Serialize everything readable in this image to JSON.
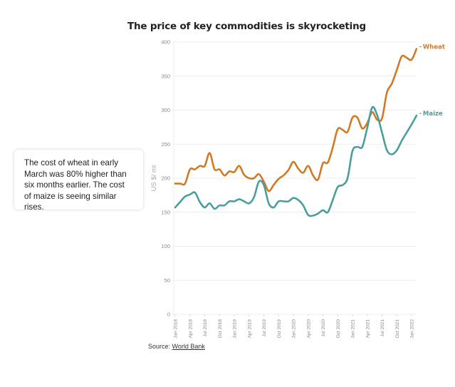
{
  "callout": {
    "text": "The cost of wheat in early March was 80% higher than six months earlier. The cost of maize is seeing similar rises."
  },
  "source": {
    "prefix": "Source: ",
    "link_label": "World Bank"
  },
  "chart_data": {
    "type": "line",
    "title": "The price of key commodities is skyrocketing",
    "xlabel": "",
    "ylabel": "US $/ mt",
    "ylim": [
      0,
      400
    ],
    "yticks": [
      0,
      50,
      100,
      150,
      200,
      250,
      300,
      350,
      400
    ],
    "grid": true,
    "x_start": "2018-01",
    "x_step": "month",
    "xtick_labels": [
      {
        "month_index": 0,
        "label": "Jan 2018"
      },
      {
        "month_index": 3,
        "label": "Apr 2018"
      },
      {
        "month_index": 6,
        "label": "Jul 2018"
      },
      {
        "month_index": 9,
        "label": "Oct 2018"
      },
      {
        "month_index": 12,
        "label": "Jan 2019"
      },
      {
        "month_index": 15,
        "label": "Apr 2019"
      },
      {
        "month_index": 18,
        "label": "Jul 2019"
      },
      {
        "month_index": 21,
        "label": "Oct 2019"
      },
      {
        "month_index": 24,
        "label": "Jan 2020"
      },
      {
        "month_index": 27,
        "label": "Apr 2020"
      },
      {
        "month_index": 30,
        "label": "Jul 2020"
      },
      {
        "month_index": 33,
        "label": "Oct 2020"
      },
      {
        "month_index": 36,
        "label": "Jan 2021"
      },
      {
        "month_index": 39,
        "label": "Apr 2021"
      },
      {
        "month_index": 42,
        "label": "Jul 2021"
      },
      {
        "month_index": 45,
        "label": "Oct 2021"
      },
      {
        "month_index": 48,
        "label": "Jan 2022"
      }
    ],
    "x_range_months": [
      0,
      48
    ],
    "legend": "inline-end-labels",
    "series": [
      {
        "name": "Wheat",
        "color": "#d07a26",
        "values": [
          192,
          192,
          192,
          213,
          213,
          218,
          218,
          237,
          213,
          213,
          204,
          210,
          209,
          218,
          205,
          200,
          200,
          206,
          195,
          181,
          190,
          199,
          204,
          212,
          224,
          214,
          208,
          218,
          204,
          198,
          222,
          223,
          245,
          272,
          271,
          268,
          289,
          289,
          273,
          281,
          297,
          286,
          288,
          326,
          339,
          359,
          379,
          377,
          374,
          390
        ]
      },
      {
        "name": "Maize",
        "color": "#4a9e9c",
        "values": [
          157,
          165,
          173,
          176,
          179,
          165,
          157,
          163,
          155,
          160,
          160,
          166,
          166,
          169,
          166,
          163,
          172,
          195,
          190,
          163,
          157,
          166,
          166,
          166,
          171,
          168,
          160,
          146,
          145,
          148,
          153,
          150,
          168,
          187,
          190,
          200,
          240,
          246,
          246,
          274,
          304,
          293,
          267,
          241,
          235,
          241,
          255,
          267,
          279,
          292
        ]
      }
    ]
  }
}
